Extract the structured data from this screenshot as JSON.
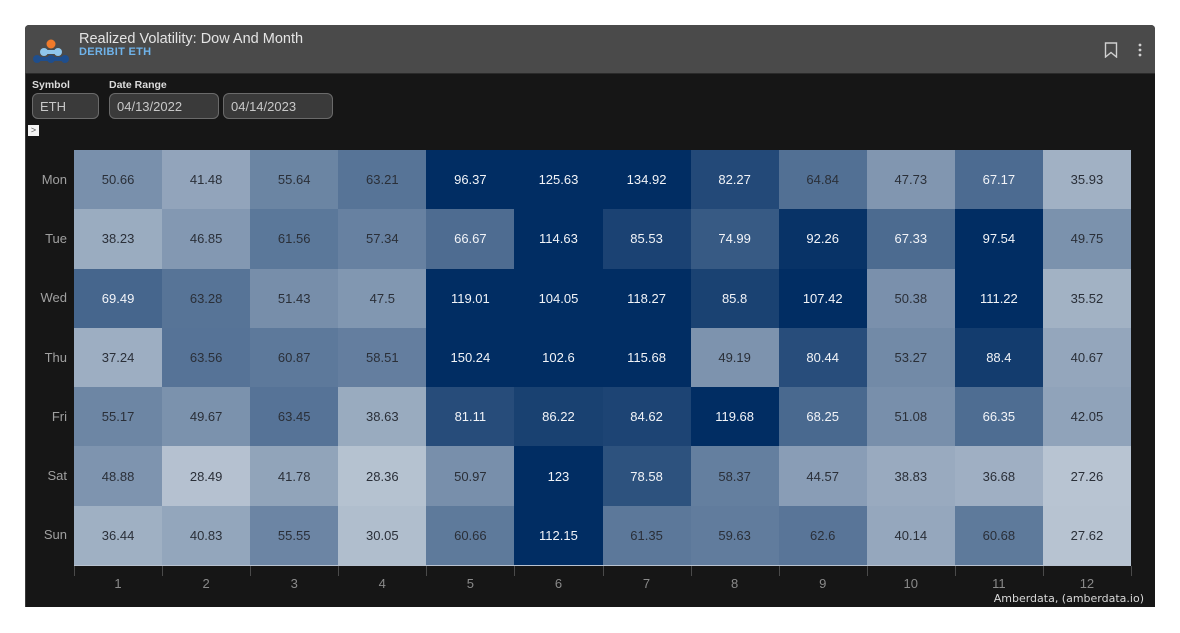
{
  "header": {
    "title": "Realized Volatility: Dow And Month",
    "subtitle": "DERIBIT ETH",
    "icons": [
      "bookmark-icon",
      "more-vertical-icon"
    ]
  },
  "filters": {
    "symbol_label": "Symbol",
    "symbol_value": "ETH",
    "date_range_label": "Date Range",
    "date_start": "04/13/2022",
    "date_end": "04/14/2023",
    "toggle_glyph": ">"
  },
  "colors": {
    "scale_low": "#b8c4d2",
    "scale_high": "#012d63",
    "text_dark": "#2a2f38",
    "text_light": "#f2f4f8",
    "subtitle": "#6fb3ea"
  },
  "chart_data": {
    "type": "heatmap",
    "title": "Realized Volatility: Dow And Month",
    "subtitle": "DERIBIT ETH",
    "xlabel": "",
    "ylabel": "",
    "x": [
      "1",
      "2",
      "3",
      "4",
      "5",
      "6",
      "7",
      "8",
      "9",
      "10",
      "11",
      "12"
    ],
    "y": [
      "Mon",
      "Tue",
      "Wed",
      "Thu",
      "Fri",
      "Sat",
      "Sun"
    ],
    "values": [
      [
        50.66,
        41.48,
        55.64,
        63.21,
        96.37,
        125.63,
        134.92,
        82.27,
        64.84,
        47.73,
        67.17,
        35.93
      ],
      [
        38.23,
        46.85,
        61.56,
        57.34,
        66.67,
        114.63,
        85.53,
        74.99,
        92.26,
        67.33,
        97.54,
        49.75
      ],
      [
        69.49,
        63.28,
        51.43,
        47.5,
        119.01,
        104.05,
        118.27,
        85.8,
        107.42,
        50.38,
        111.22,
        35.52
      ],
      [
        37.24,
        63.56,
        60.87,
        58.51,
        150.24,
        102.6,
        115.68,
        49.19,
        80.44,
        53.27,
        88.4,
        40.67
      ],
      [
        55.17,
        49.67,
        63.45,
        38.63,
        81.11,
        86.22,
        84.62,
        119.68,
        68.25,
        51.08,
        66.35,
        42.05
      ],
      [
        48.88,
        28.49,
        41.78,
        28.36,
        50.97,
        123,
        78.58,
        58.37,
        44.57,
        38.83,
        36.68,
        27.26
      ],
      [
        36.44,
        40.83,
        55.55,
        30.05,
        60.66,
        112.15,
        61.35,
        59.63,
        62.6,
        40.14,
        60.68,
        27.62
      ]
    ],
    "color_scale": {
      "min_color": "#b8c4d2",
      "max_color": "#012d63",
      "saturates_at": 95
    },
    "grid": false,
    "legend": "none"
  },
  "footer": {
    "credit": "Amberdata, (amberdata.io)"
  }
}
